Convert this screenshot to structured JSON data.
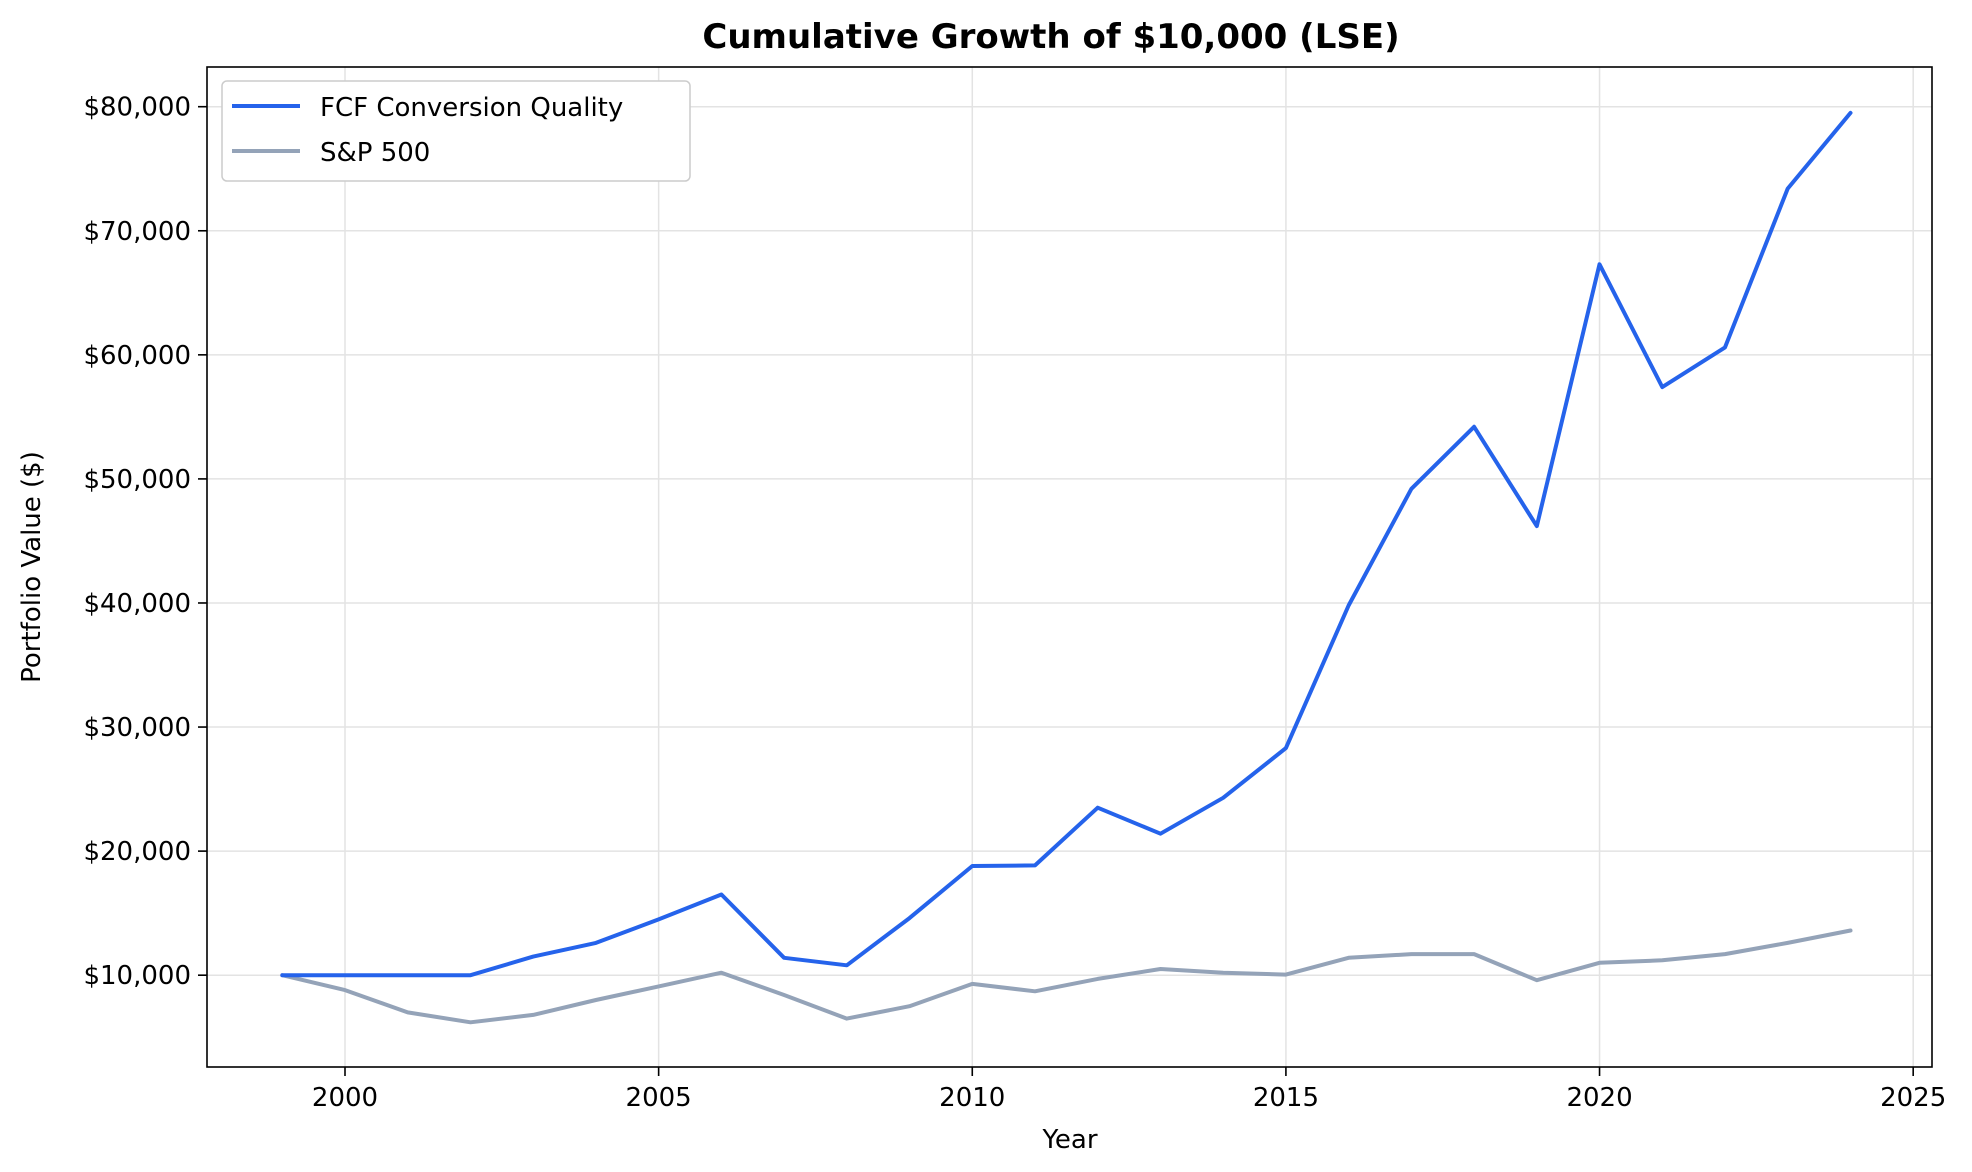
{
  "chart_data": {
    "type": "line",
    "title": "Cumulative Growth of $10,000 (LSE)",
    "xlabel": "Year",
    "ylabel": "Portfolio Value ($)",
    "xlim": [
      1997.8,
      2025.3
    ],
    "ylim": [
      2600,
      83200
    ],
    "x_ticks": [
      2000,
      2005,
      2010,
      2015,
      2020,
      2025
    ],
    "x_tick_labels": [
      "2000",
      "2005",
      "2010",
      "2015",
      "2020",
      "2025"
    ],
    "y_ticks": [
      10000,
      20000,
      30000,
      40000,
      50000,
      60000,
      70000,
      80000
    ],
    "y_tick_labels": [
      "$10,000",
      "$20,000",
      "$30,000",
      "$40,000",
      "$50,000",
      "$60,000",
      "$70,000",
      "$80,000"
    ],
    "grid": true,
    "legend_position": "top-left",
    "x": [
      1999,
      2000,
      2001,
      2002,
      2003,
      2004,
      2005,
      2006,
      2007,
      2008,
      2009,
      2010,
      2011,
      2012,
      2013,
      2014,
      2015,
      2016,
      2017,
      2018,
      2019,
      2020,
      2021,
      2022,
      2023,
      2024
    ],
    "series": [
      {
        "name": "FCF Conversion Quality",
        "color": "#2563eb",
        "values": [
          10000,
          10000,
          10000,
          10000,
          11500,
          12600,
          14500,
          16500,
          11400,
          10800,
          14600,
          18800,
          18850,
          23500,
          21400,
          24300,
          28300,
          39800,
          49200,
          54200,
          46200,
          67300,
          57400,
          60600,
          73400,
          79500
        ]
      },
      {
        "name": "S&P 500",
        "color": "#94a3b8",
        "values": [
          10000,
          8800,
          7000,
          6200,
          6800,
          8000,
          9100,
          10200,
          8400,
          6500,
          7500,
          9300,
          8700,
          9700,
          10500,
          10200,
          10050,
          11400,
          11700,
          11700,
          9600,
          11000,
          11200,
          11700,
          12600,
          13600
        ]
      }
    ]
  }
}
